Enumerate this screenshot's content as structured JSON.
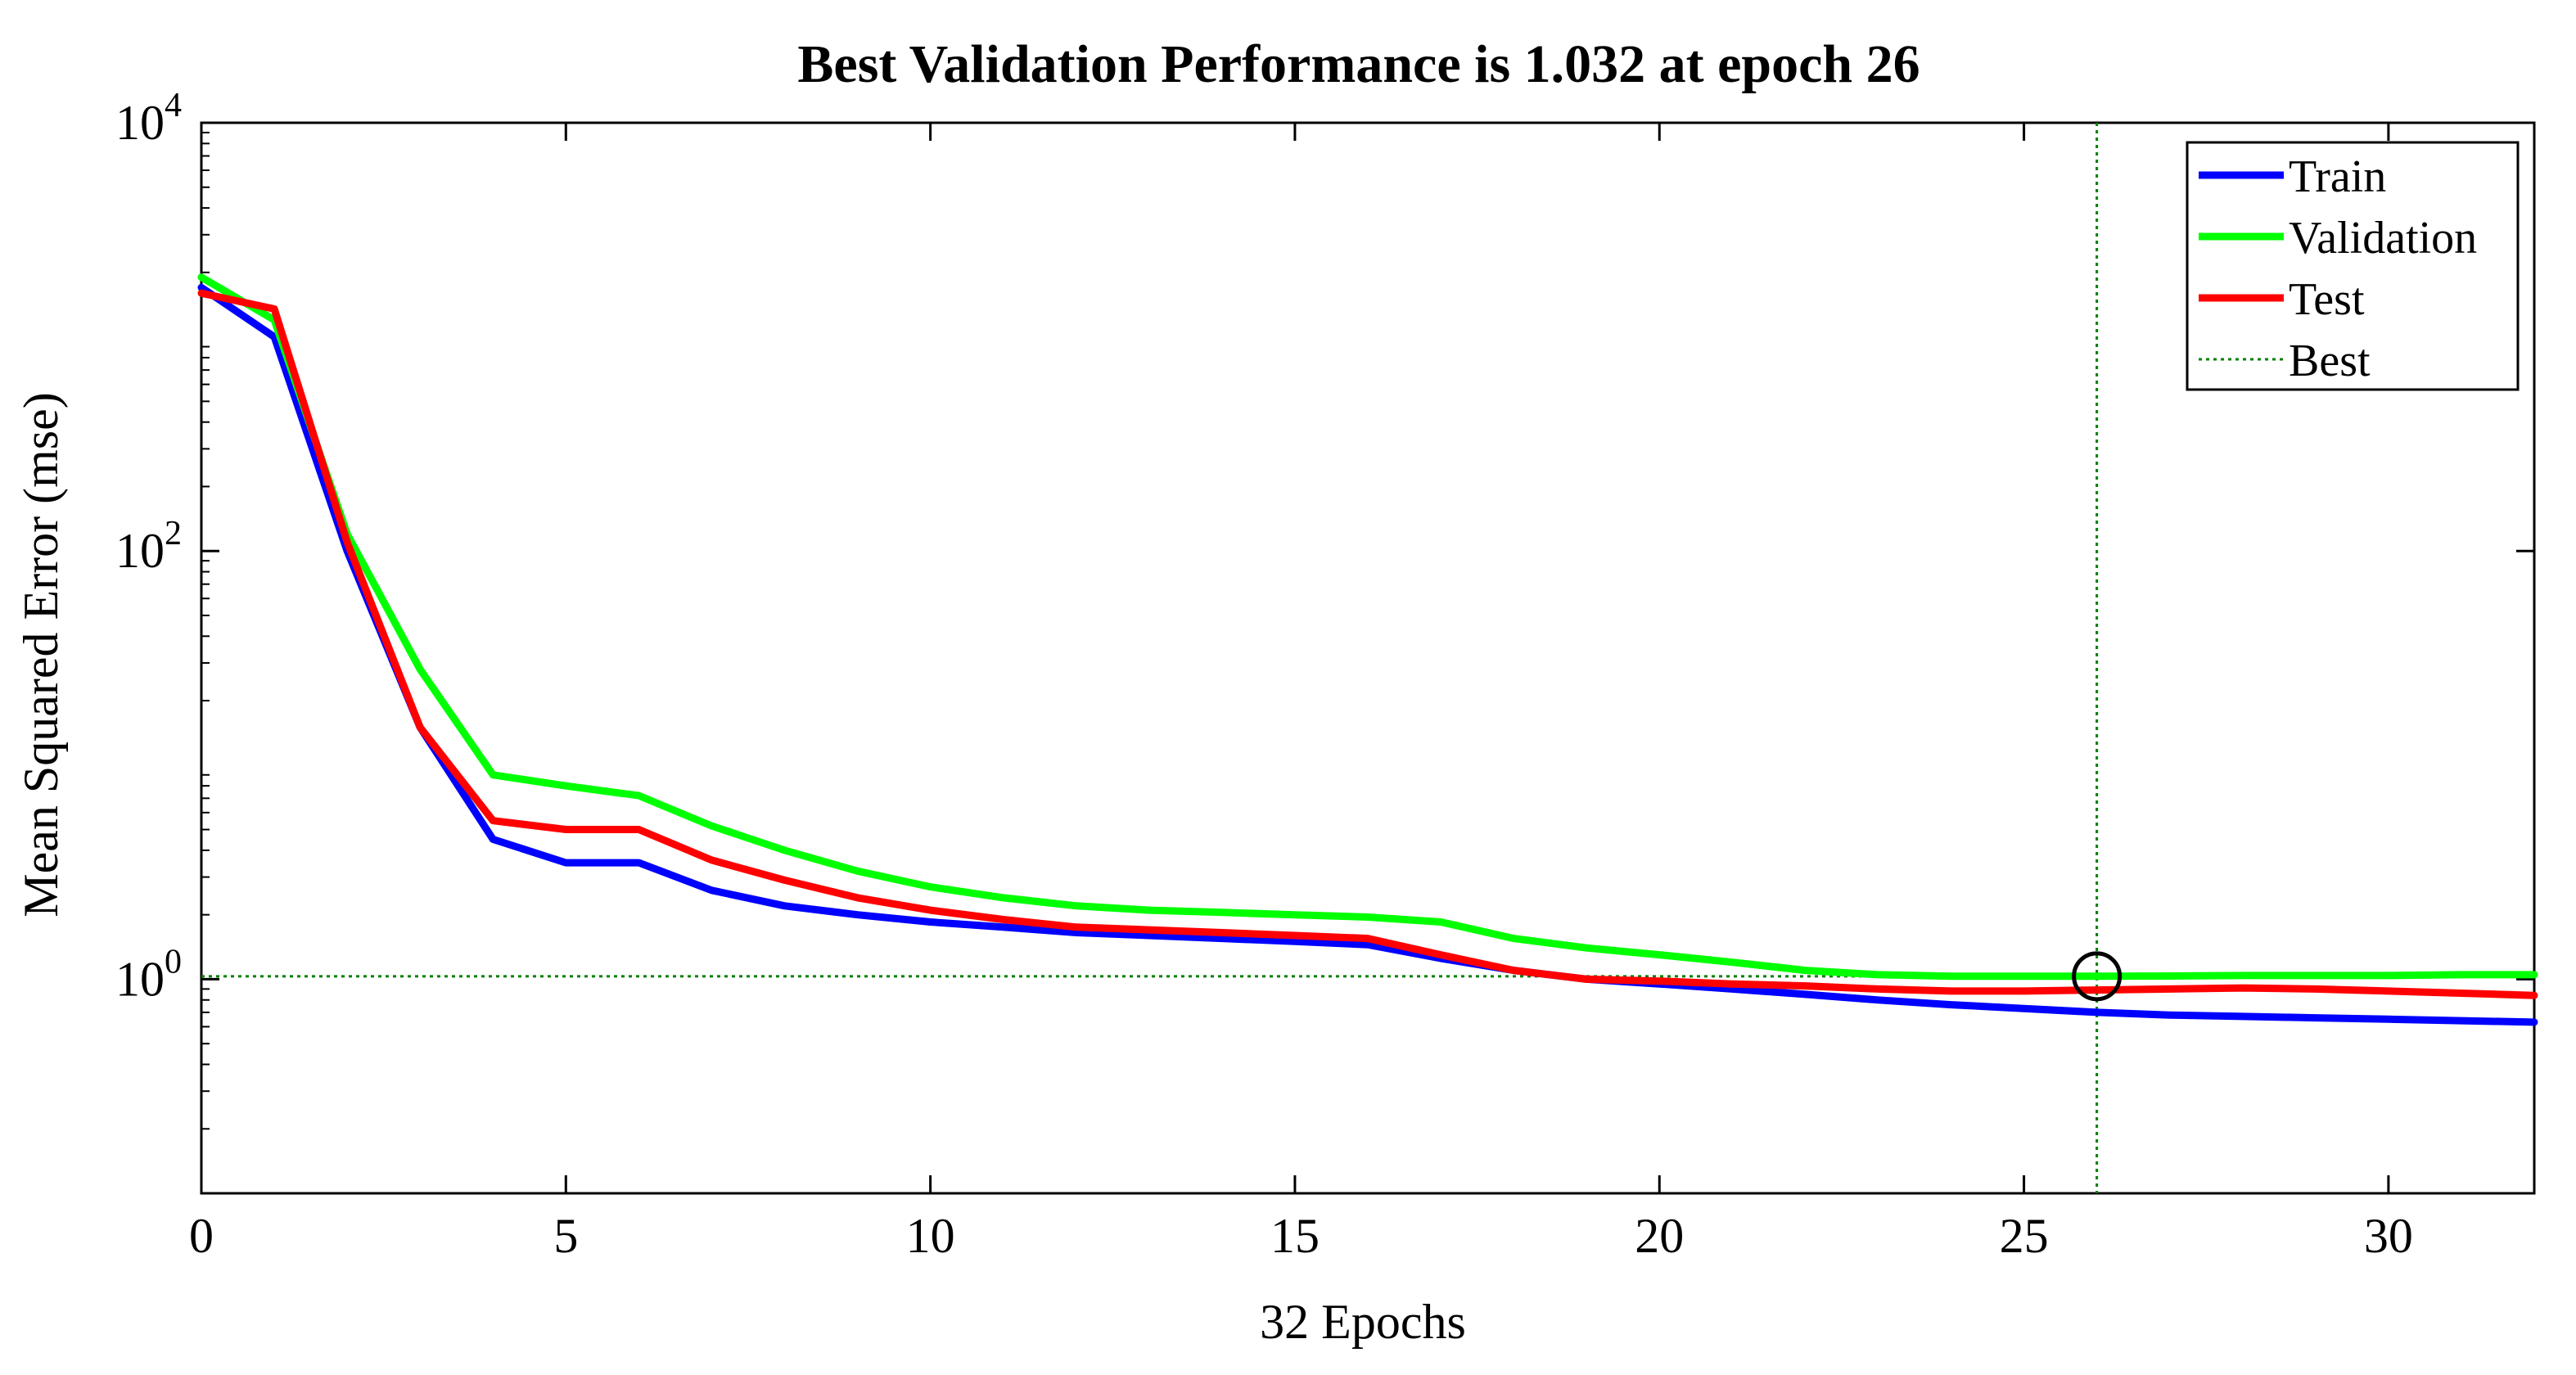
{
  "chart_data": {
    "type": "line",
    "title": "Best Validation Performance is 1.032 at epoch 26",
    "xlabel": "32 Epochs",
    "ylabel": "Mean Squared Error  (mse)",
    "xlim": [
      0,
      32
    ],
    "ylim": [
      0.1,
      10000
    ],
    "yscale": "log",
    "xticks": [
      0,
      5,
      10,
      15,
      20,
      25,
      30
    ],
    "yticks": [
      {
        "value": 1,
        "base": "10",
        "exp": "0"
      },
      {
        "value": 100,
        "base": "10",
        "exp": "2"
      },
      {
        "value": 10000,
        "base": "10",
        "exp": "4"
      }
    ],
    "x": [
      0,
      1,
      2,
      3,
      4,
      5,
      6,
      7,
      8,
      9,
      10,
      11,
      12,
      13,
      14,
      15,
      16,
      17,
      18,
      19,
      20,
      21,
      22,
      23,
      24,
      25,
      26,
      27,
      28,
      29,
      30,
      31,
      32
    ],
    "series": [
      {
        "name": "Train",
        "color": "#0000ff",
        "values": [
          1700,
          1000,
          100,
          15,
          4.5,
          3.5,
          3.5,
          2.6,
          2.2,
          2.0,
          1.85,
          1.75,
          1.65,
          1.6,
          1.55,
          1.5,
          1.45,
          1.25,
          1.1,
          1.0,
          0.95,
          0.9,
          0.85,
          0.8,
          0.76,
          0.73,
          0.7,
          0.68,
          0.67,
          0.66,
          0.65,
          0.64,
          0.63
        ]
      },
      {
        "name": "Validation",
        "color": "#00ff00",
        "values": [
          1900,
          1200,
          120,
          28,
          9.0,
          8.0,
          7.2,
          5.2,
          4.0,
          3.2,
          2.7,
          2.4,
          2.2,
          2.1,
          2.05,
          2.0,
          1.95,
          1.85,
          1.55,
          1.4,
          1.3,
          1.2,
          1.1,
          1.05,
          1.032,
          1.032,
          1.032,
          1.035,
          1.04,
          1.04,
          1.04,
          1.05,
          1.05
        ]
      },
      {
        "name": "Test",
        "color": "#ff0000",
        "values": [
          1600,
          1350,
          110,
          15,
          5.5,
          5.0,
          5.0,
          3.6,
          2.9,
          2.4,
          2.1,
          1.9,
          1.75,
          1.7,
          1.65,
          1.6,
          1.55,
          1.3,
          1.1,
          1.0,
          0.98,
          0.95,
          0.93,
          0.9,
          0.88,
          0.88,
          0.89,
          0.9,
          0.91,
          0.9,
          0.88,
          0.86,
          0.84
        ]
      }
    ],
    "best": {
      "name": "Best",
      "epoch": 26,
      "value": 1.032,
      "color": "#008000"
    },
    "legend_position": "top-right",
    "grid": false
  }
}
